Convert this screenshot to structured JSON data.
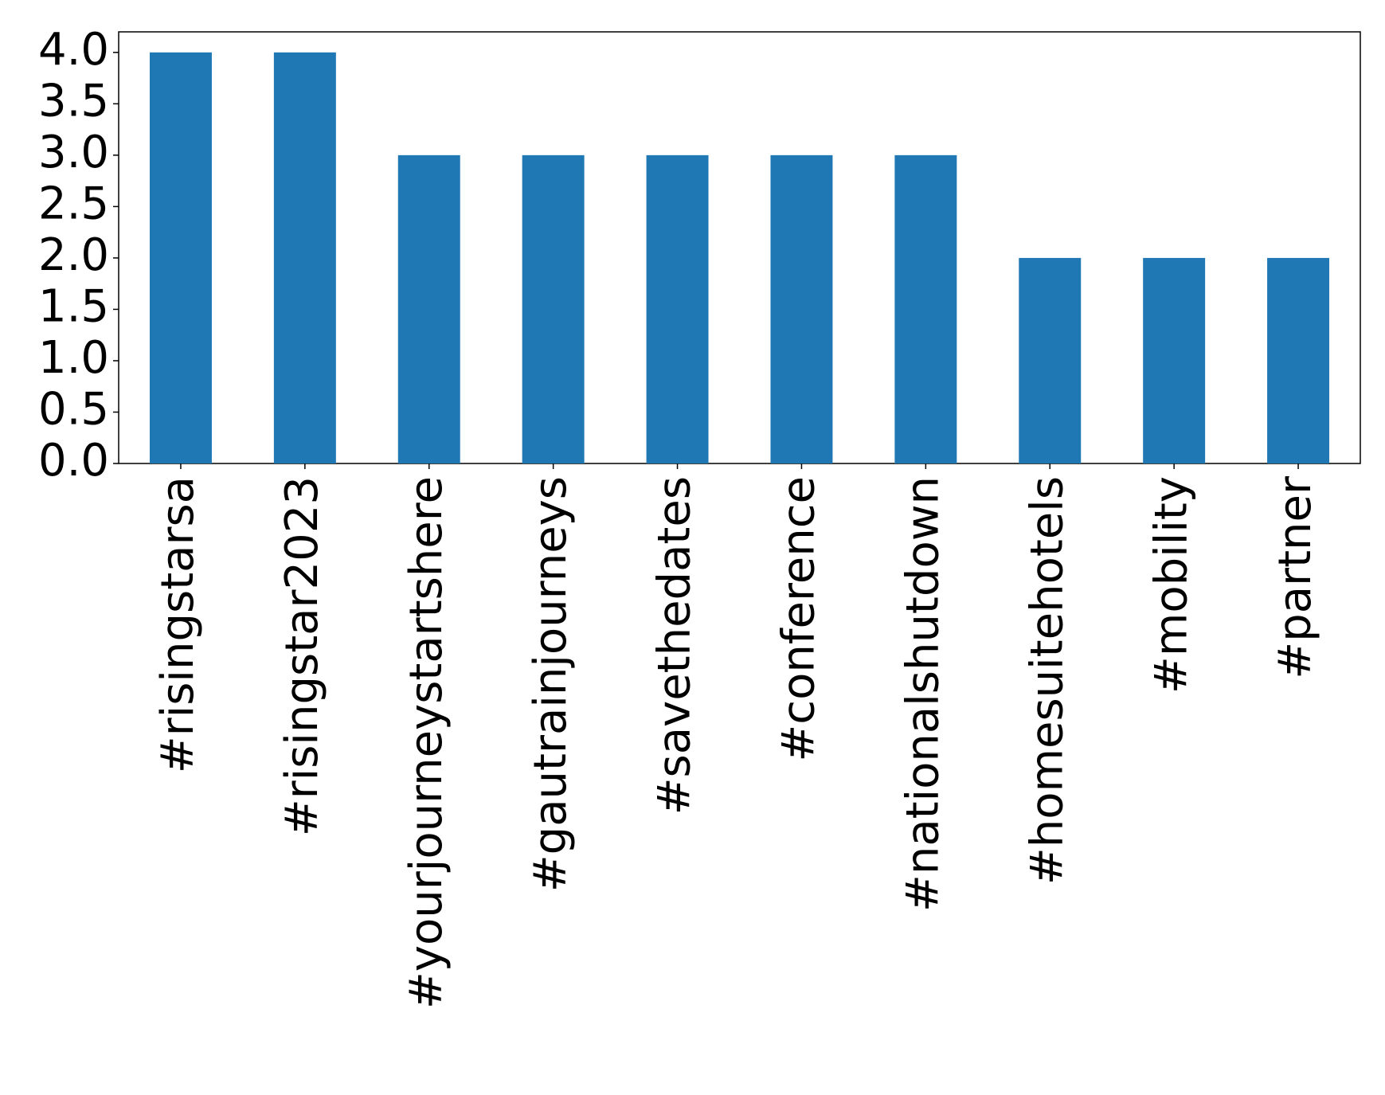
{
  "chart_data": {
    "type": "bar",
    "categories": [
      "#risingstarsa",
      "#risingstar2023",
      "#yourjourneystartshere",
      "#gautrainjourneys",
      "#savethedates",
      "#conference",
      "#nationalshutdown",
      "#homesuitehotels",
      "#mobility",
      "#partner"
    ],
    "values": [
      4,
      4,
      3,
      3,
      3,
      3,
      3,
      2,
      2,
      2
    ],
    "color": "#1f77b4",
    "ylim": [
      0,
      4.2
    ],
    "yticks": [
      {
        "value": 0,
        "label": "0.0"
      },
      {
        "value": 0.5,
        "label": "0.5"
      },
      {
        "value": 1,
        "label": "1.0"
      },
      {
        "value": 1.5,
        "label": "1.5"
      },
      {
        "value": 2,
        "label": "2.0"
      },
      {
        "value": 2.5,
        "label": "2.5"
      },
      {
        "value": 3,
        "label": "3.0"
      },
      {
        "value": 3.5,
        "label": "3.5"
      },
      {
        "value": 4,
        "label": "4.0"
      }
    ],
    "grid": false
  }
}
